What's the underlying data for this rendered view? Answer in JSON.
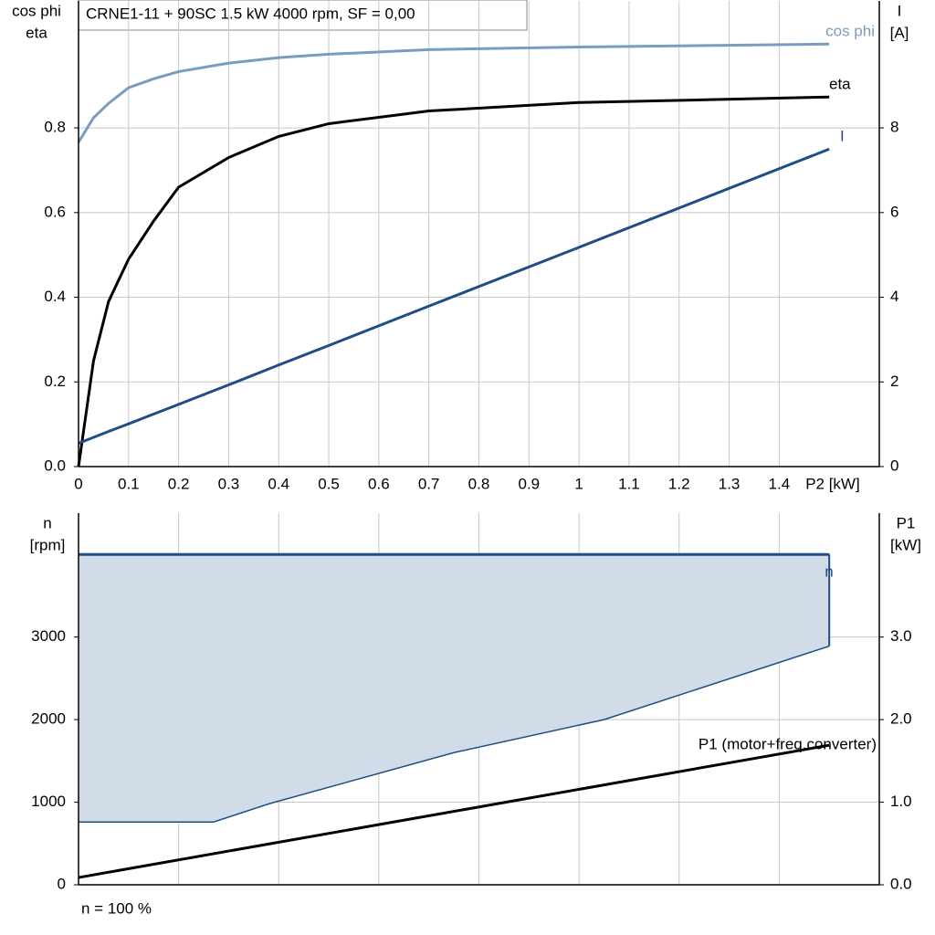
{
  "chart_data": [
    {
      "type": "line",
      "title": "CRNE1-11 + 90SC   1.5 kW   4000 rpm, SF = 0,00",
      "ylabel": [
        "cos phi",
        "eta"
      ],
      "y2label": [
        "I",
        "[A]"
      ],
      "xlabel": "P2 [kW]",
      "x": [
        0,
        0.03,
        0.06,
        0.1,
        0.15,
        0.2,
        0.3,
        0.4,
        0.5,
        0.7,
        1.0,
        1.5
      ],
      "xlim": [
        0,
        1.6
      ],
      "xticks": [
        0,
        0.1,
        0.2,
        0.3,
        0.4,
        0.5,
        0.6,
        0.7,
        0.8,
        0.9,
        1.0,
        1.1,
        1.2,
        1.3,
        1.4
      ],
      "ylim": [
        0,
        1.1
      ],
      "yticks": [
        {
          "value": 0,
          "label": "0.0"
        },
        0.2,
        0.4,
        0.6,
        0.8
      ],
      "y2lim": [
        0,
        11
      ],
      "y2ticks": [
        0,
        2,
        4,
        6,
        8
      ],
      "grid": true,
      "series": [
        {
          "name": "cos phi",
          "color": "#7a9cc0",
          "axis": "y",
          "values": [
            0.766,
            0.824,
            0.858,
            0.895,
            0.916,
            0.933,
            0.953,
            0.966,
            0.974,
            0.985,
            0.991,
            0.998
          ]
        },
        {
          "name": "eta",
          "color": "#000000",
          "axis": "y",
          "values": [
            0,
            0.25,
            0.39,
            0.49,
            0.58,
            0.66,
            0.73,
            0.78,
            0.81,
            0.84,
            0.86,
            0.873
          ]
        },
        {
          "name": "I",
          "color": "#1f4e85",
          "axis": "y2",
          "values": [
            0.55,
            0.69,
            0.83,
            1.01,
            1.24,
            1.47,
            1.93,
            2.4,
            2.86,
            3.79,
            5.18,
            7.5
          ]
        }
      ]
    },
    {
      "type": "area",
      "ylabel": [
        "n",
        "[rpm]"
      ],
      "y2label": [
        "P1",
        "[kW]"
      ],
      "footnote": "n = 100 %",
      "xlim": [
        0,
        1.6
      ],
      "xgrid": [
        0.2,
        0.4,
        0.6,
        0.8,
        1.0,
        1.2,
        1.4
      ],
      "ylim": [
        0,
        4500
      ],
      "yticks": [
        0,
        1000,
        2000,
        3000
      ],
      "y2lim": [
        0,
        4.5
      ],
      "y2ticks": [
        {
          "value": 0,
          "label": "0.0"
        },
        {
          "value": 1,
          "label": "1.0"
        },
        {
          "value": 2,
          "label": "2.0"
        },
        {
          "value": 3,
          "label": "3.0"
        }
      ],
      "grid": true,
      "series": [
        {
          "name": "n",
          "color": "#1f4e85",
          "fill": "#d1dce8",
          "axis": "y",
          "x": [
            0,
            0.27,
            0.38,
            0.75,
            1.05,
            1.5
          ],
          "values": [
            4000,
            4000,
            4000,
            4000,
            4000,
            4000
          ],
          "lower": [
            760,
            760,
            980,
            1600,
            2000,
            2890
          ]
        },
        {
          "name": "P1 (motor+freq.converter)",
          "color": "#000000",
          "axis": "y2",
          "x": [
            0,
            1.5
          ],
          "values": [
            0.088,
            1.69
          ]
        }
      ]
    }
  ]
}
